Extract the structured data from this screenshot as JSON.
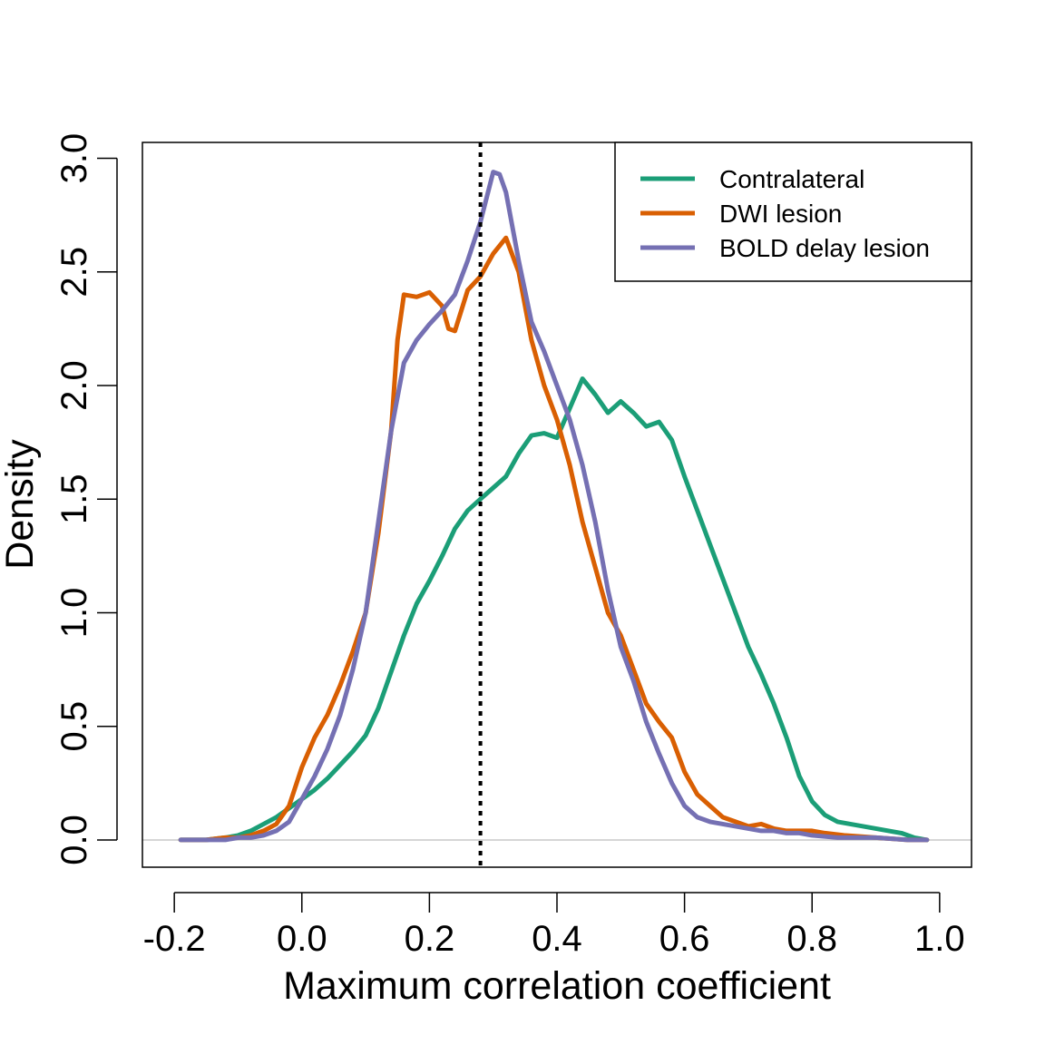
{
  "chart_data": {
    "type": "line",
    "title": "",
    "xlabel": "Maximum correlation coefficient",
    "ylabel": "Density",
    "xlim": [
      -0.25,
      1.05
    ],
    "ylim": [
      -0.12,
      3.07
    ],
    "x_ticks": [
      -0.2,
      0.0,
      0.2,
      0.4,
      0.6,
      0.8,
      1.0
    ],
    "x_tick_labels": [
      "-0.2",
      "0.0",
      "0.2",
      "0.4",
      "0.6",
      "0.8",
      "1.0"
    ],
    "y_ticks": [
      0.0,
      0.5,
      1.0,
      1.5,
      2.0,
      2.5,
      3.0
    ],
    "y_tick_labels": [
      "0.0",
      "0.5",
      "1.0",
      "1.5",
      "2.0",
      "2.5",
      "3.0"
    ],
    "grid": false,
    "legend_position": "top-right",
    "baseline": {
      "y": 0,
      "color": "#c8c8c8"
    },
    "vline": {
      "x": 0.28,
      "style": "dotted",
      "color": "#000000"
    },
    "series": [
      {
        "name": "Contralateral",
        "color": "#1b9e77",
        "points": [
          [
            -0.19,
            0.0
          ],
          [
            -0.15,
            0.0
          ],
          [
            -0.12,
            0.01
          ],
          [
            -0.1,
            0.02
          ],
          [
            -0.08,
            0.04
          ],
          [
            -0.06,
            0.07
          ],
          [
            -0.04,
            0.1
          ],
          [
            -0.02,
            0.14
          ],
          [
            0.0,
            0.18
          ],
          [
            0.02,
            0.22
          ],
          [
            0.04,
            0.27
          ],
          [
            0.06,
            0.33
          ],
          [
            0.08,
            0.39
          ],
          [
            0.1,
            0.46
          ],
          [
            0.12,
            0.58
          ],
          [
            0.14,
            0.74
          ],
          [
            0.16,
            0.9
          ],
          [
            0.18,
            1.04
          ],
          [
            0.2,
            1.14
          ],
          [
            0.22,
            1.25
          ],
          [
            0.24,
            1.37
          ],
          [
            0.26,
            1.45
          ],
          [
            0.28,
            1.5
          ],
          [
            0.3,
            1.55
          ],
          [
            0.32,
            1.6
          ],
          [
            0.34,
            1.7
          ],
          [
            0.36,
            1.78
          ],
          [
            0.38,
            1.79
          ],
          [
            0.4,
            1.77
          ],
          [
            0.42,
            1.9
          ],
          [
            0.44,
            2.03
          ],
          [
            0.46,
            1.96
          ],
          [
            0.48,
            1.88
          ],
          [
            0.5,
            1.93
          ],
          [
            0.52,
            1.88
          ],
          [
            0.54,
            1.82
          ],
          [
            0.56,
            1.84
          ],
          [
            0.58,
            1.76
          ],
          [
            0.6,
            1.6
          ],
          [
            0.62,
            1.45
          ],
          [
            0.64,
            1.3
          ],
          [
            0.66,
            1.15
          ],
          [
            0.68,
            1.0
          ],
          [
            0.7,
            0.85
          ],
          [
            0.72,
            0.73
          ],
          [
            0.74,
            0.6
          ],
          [
            0.76,
            0.45
          ],
          [
            0.78,
            0.28
          ],
          [
            0.8,
            0.17
          ],
          [
            0.82,
            0.11
          ],
          [
            0.84,
            0.08
          ],
          [
            0.86,
            0.07
          ],
          [
            0.88,
            0.06
          ],
          [
            0.9,
            0.05
          ],
          [
            0.92,
            0.04
          ],
          [
            0.94,
            0.03
          ],
          [
            0.96,
            0.01
          ],
          [
            0.98,
            0.0
          ]
        ]
      },
      {
        "name": "DWI lesion",
        "color": "#d95f02",
        "points": [
          [
            -0.19,
            0.0
          ],
          [
            -0.15,
            0.0
          ],
          [
            -0.12,
            0.01
          ],
          [
            -0.1,
            0.01
          ],
          [
            -0.08,
            0.02
          ],
          [
            -0.06,
            0.04
          ],
          [
            -0.04,
            0.07
          ],
          [
            -0.02,
            0.15
          ],
          [
            0.0,
            0.32
          ],
          [
            0.02,
            0.45
          ],
          [
            0.04,
            0.55
          ],
          [
            0.06,
            0.68
          ],
          [
            0.08,
            0.83
          ],
          [
            0.1,
            1.0
          ],
          [
            0.12,
            1.35
          ],
          [
            0.14,
            1.8
          ],
          [
            0.15,
            2.2
          ],
          [
            0.16,
            2.4
          ],
          [
            0.18,
            2.39
          ],
          [
            0.2,
            2.41
          ],
          [
            0.22,
            2.35
          ],
          [
            0.23,
            2.25
          ],
          [
            0.24,
            2.24
          ],
          [
            0.26,
            2.42
          ],
          [
            0.28,
            2.48
          ],
          [
            0.3,
            2.58
          ],
          [
            0.32,
            2.65
          ],
          [
            0.34,
            2.5
          ],
          [
            0.36,
            2.2
          ],
          [
            0.38,
            2.0
          ],
          [
            0.4,
            1.85
          ],
          [
            0.42,
            1.65
          ],
          [
            0.44,
            1.4
          ],
          [
            0.46,
            1.2
          ],
          [
            0.48,
            1.0
          ],
          [
            0.5,
            0.9
          ],
          [
            0.52,
            0.75
          ],
          [
            0.54,
            0.6
          ],
          [
            0.56,
            0.52
          ],
          [
            0.58,
            0.45
          ],
          [
            0.6,
            0.3
          ],
          [
            0.62,
            0.2
          ],
          [
            0.64,
            0.15
          ],
          [
            0.66,
            0.1
          ],
          [
            0.68,
            0.08
          ],
          [
            0.7,
            0.06
          ],
          [
            0.72,
            0.07
          ],
          [
            0.74,
            0.05
          ],
          [
            0.76,
            0.04
          ],
          [
            0.78,
            0.04
          ],
          [
            0.8,
            0.04
          ],
          [
            0.82,
            0.03
          ],
          [
            0.85,
            0.02
          ],
          [
            0.9,
            0.01
          ],
          [
            0.95,
            0.0
          ],
          [
            0.98,
            0.0
          ]
        ]
      },
      {
        "name": "BOLD delay lesion",
        "color": "#7570b3",
        "points": [
          [
            -0.19,
            0.0
          ],
          [
            -0.15,
            0.0
          ],
          [
            -0.12,
            0.0
          ],
          [
            -0.1,
            0.01
          ],
          [
            -0.08,
            0.01
          ],
          [
            -0.06,
            0.02
          ],
          [
            -0.04,
            0.04
          ],
          [
            -0.02,
            0.08
          ],
          [
            0.0,
            0.18
          ],
          [
            0.02,
            0.28
          ],
          [
            0.04,
            0.4
          ],
          [
            0.06,
            0.55
          ],
          [
            0.08,
            0.75
          ],
          [
            0.1,
            1.0
          ],
          [
            0.12,
            1.4
          ],
          [
            0.14,
            1.8
          ],
          [
            0.16,
            2.1
          ],
          [
            0.18,
            2.2
          ],
          [
            0.2,
            2.27
          ],
          [
            0.22,
            2.33
          ],
          [
            0.24,
            2.4
          ],
          [
            0.26,
            2.55
          ],
          [
            0.28,
            2.72
          ],
          [
            0.3,
            2.94
          ],
          [
            0.31,
            2.93
          ],
          [
            0.32,
            2.85
          ],
          [
            0.34,
            2.55
          ],
          [
            0.36,
            2.28
          ],
          [
            0.38,
            2.15
          ],
          [
            0.4,
            2.0
          ],
          [
            0.42,
            1.85
          ],
          [
            0.44,
            1.65
          ],
          [
            0.46,
            1.4
          ],
          [
            0.48,
            1.1
          ],
          [
            0.5,
            0.85
          ],
          [
            0.52,
            0.7
          ],
          [
            0.54,
            0.52
          ],
          [
            0.56,
            0.38
          ],
          [
            0.58,
            0.25
          ],
          [
            0.6,
            0.15
          ],
          [
            0.62,
            0.1
          ],
          [
            0.64,
            0.08
          ],
          [
            0.66,
            0.07
          ],
          [
            0.68,
            0.06
          ],
          [
            0.7,
            0.05
          ],
          [
            0.72,
            0.04
          ],
          [
            0.74,
            0.04
          ],
          [
            0.76,
            0.03
          ],
          [
            0.78,
            0.03
          ],
          [
            0.8,
            0.02
          ],
          [
            0.84,
            0.01
          ],
          [
            0.9,
            0.01
          ],
          [
            0.95,
            0.0
          ],
          [
            0.98,
            0.0
          ]
        ]
      }
    ]
  }
}
